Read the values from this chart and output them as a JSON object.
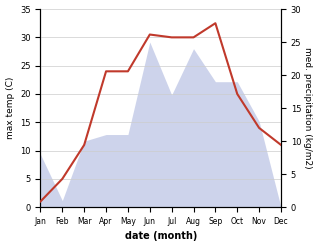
{
  "months": [
    "Jan",
    "Feb",
    "Mar",
    "Apr",
    "May",
    "Jun",
    "Jul",
    "Aug",
    "Sep",
    "Oct",
    "Nov",
    "Dec"
  ],
  "temp_values": [
    1,
    5,
    11,
    24,
    24,
    30.5,
    30,
    30,
    32.5,
    20,
    14,
    11
  ],
  "precip_values": [
    8,
    1,
    10,
    11,
    11,
    25,
    17,
    24,
    19,
    19,
    13,
    0
  ],
  "temp_color": "#c0392b",
  "precip_fill_color": "#c5cce8",
  "precip_fill_alpha": 0.85,
  "temp_ylim": [
    0,
    35
  ],
  "precip_ylim": [
    0,
    30
  ],
  "ylabel_left": "max temp (C)",
  "ylabel_right": "med. precipitation (kg/m2)",
  "xlabel": "date (month)",
  "temp_yticks": [
    0,
    5,
    10,
    15,
    20,
    25,
    30,
    35
  ],
  "precip_yticks": [
    0,
    5,
    10,
    15,
    20,
    25,
    30
  ],
  "grid_color": "#cccccc",
  "background_color": "#ffffff",
  "temp_linewidth": 1.5,
  "xlabel_fontsize": 7,
  "ylabel_fontsize": 6.5,
  "tick_fontsize": 6,
  "month_fontsize": 5.5
}
